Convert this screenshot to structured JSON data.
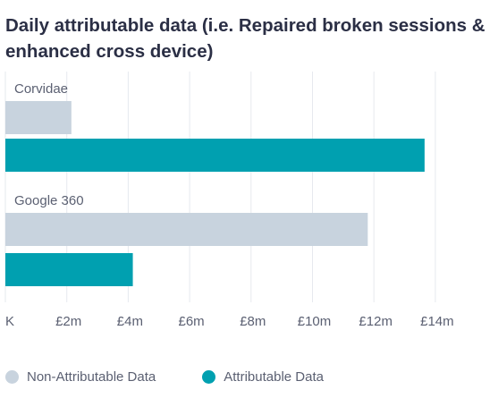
{
  "chart_data": {
    "type": "bar",
    "orientation": "horizontal",
    "title": "Daily attributable data (i.e. Repaired broken sessions & enhanced cross device)",
    "categories": [
      "Corvidae",
      "Google 360"
    ],
    "series": [
      {
        "name": "Non-Attributable Data",
        "color": "#c8d3de",
        "values": [
          2.15,
          11.8
        ]
      },
      {
        "name": "Attributable Data",
        "color": "#00a0b0",
        "values": [
          13.65,
          4.15
        ]
      }
    ],
    "xlim": [
      0,
      15
    ],
    "xticks": [
      0,
      2,
      4,
      6,
      8,
      10,
      12,
      14
    ],
    "xtick_labels": [
      "K",
      "£2m",
      "£4m",
      "£6m",
      "£8m",
      "£10m",
      "£12m",
      "£14m"
    ],
    "xlabel": "",
    "ylabel": "",
    "grid": "vertical",
    "legend_position": "bottom-left"
  }
}
